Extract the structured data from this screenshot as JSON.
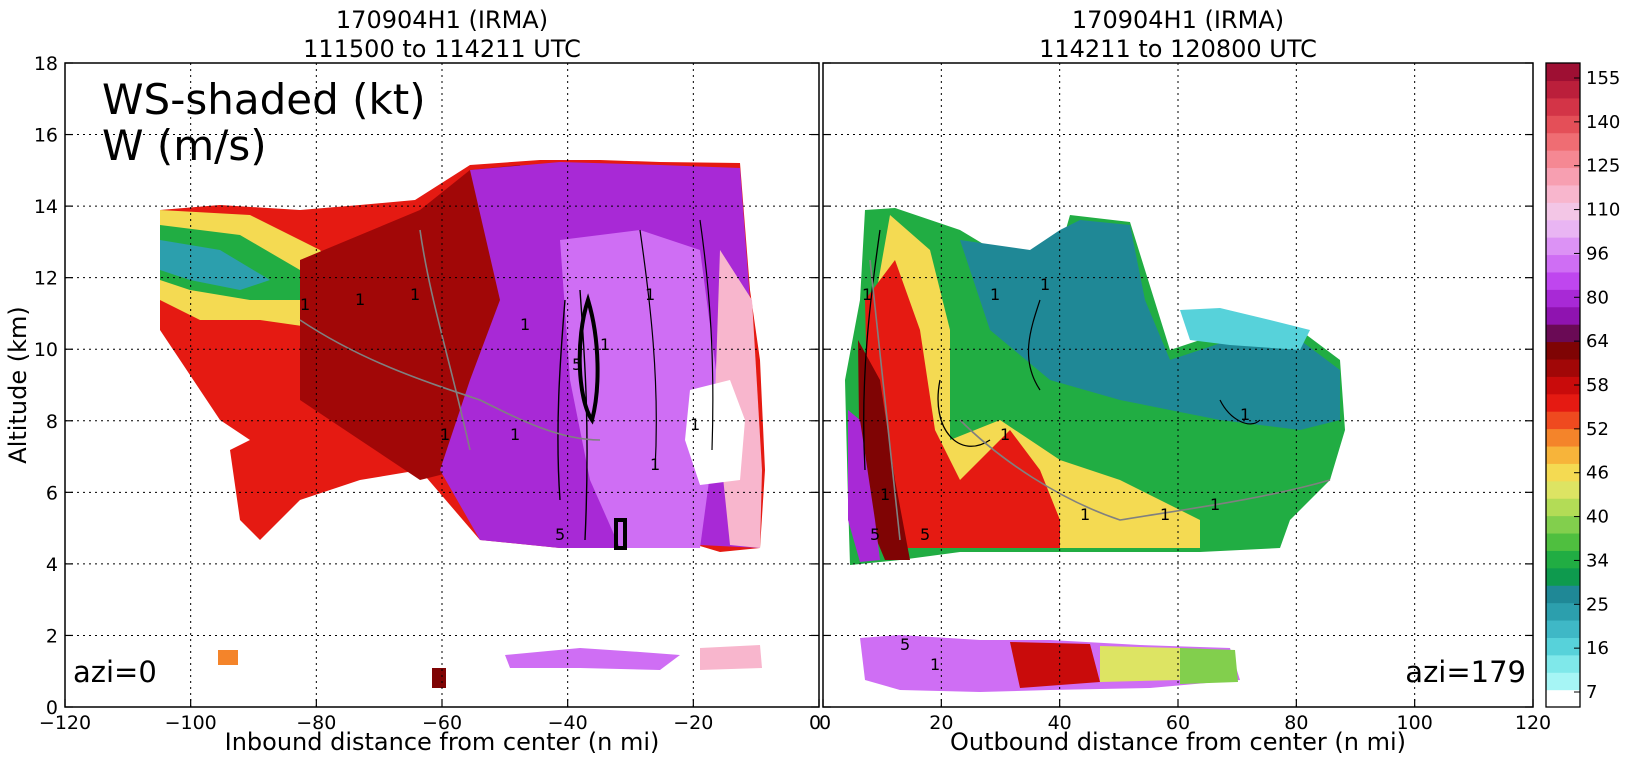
{
  "chart_data": {
    "type": "heatmap",
    "annotation": {
      "line1": "WS-shaded (kt)",
      "line2": "W (m/s)"
    },
    "ylabel": "Altitude (km)",
    "ylim": [
      0,
      18
    ],
    "yticks": [
      "0",
      "2",
      "4",
      "6",
      "8",
      "10",
      "12",
      "14",
      "16",
      "18"
    ],
    "grid": true,
    "panels": [
      {
        "title_line1": "170904H1 (IRMA)",
        "title_line2": "111500 to 114211 UTC",
        "xlabel": "Inbound distance from center (n mi)",
        "xlim": [
          -120,
          0
        ],
        "xticks": [
          "−120",
          "−100",
          "−80",
          "−60",
          "−40",
          "−20",
          "0"
        ],
        "azi_label": "azi=0",
        "contour_labels": [
          "1",
          "1",
          "1",
          "1",
          "1",
          "1",
          "1",
          "1",
          "5",
          "1",
          "1",
          "5"
        ]
      },
      {
        "title_line1": "170904H1 (IRMA)",
        "title_line2": "114211 to 120800 UTC",
        "xlabel": "Outbound distance from center (n mi)",
        "xlim": [
          0,
          120
        ],
        "xticks": [
          "0",
          "20",
          "40",
          "60",
          "80",
          "100",
          "120"
        ],
        "azi_label": "azi=179",
        "contour_labels": [
          "1",
          "1",
          "1",
          "1",
          "1",
          "5",
          "5",
          "1",
          "1",
          "1",
          "1",
          "5",
          "1"
        ]
      }
    ],
    "colorbar": {
      "labels": [
        "7",
        "16",
        "25",
        "34",
        "40",
        "46",
        "52",
        "58",
        "64",
        "80",
        "96",
        "110",
        "125",
        "140",
        "155"
      ],
      "colors": [
        "#ffffff",
        "#a6f5f5",
        "#7fe8ea",
        "#57d2da",
        "#3fb8c6",
        "#2c9fad",
        "#1f8896",
        "#0e9a4e",
        "#21ad43",
        "#4fbf3f",
        "#82cf4d",
        "#b3dc56",
        "#dde463",
        "#f4da52",
        "#f7b43a",
        "#f4842a",
        "#ef4a1f",
        "#e51a12",
        "#c90b0b",
        "#a10707",
        "#7f0404",
        "#6a0a55",
        "#8f13b0",
        "#a829d6",
        "#bf46ef",
        "#cf6ef4",
        "#dc92f5",
        "#e9b5f3",
        "#f3c6e6",
        "#f8b6cd",
        "#f79fb1",
        "#f58893",
        "#ef6d73",
        "#e44f58",
        "#d33447",
        "#bb1f3b",
        "#9e0f33"
      ]
    }
  }
}
